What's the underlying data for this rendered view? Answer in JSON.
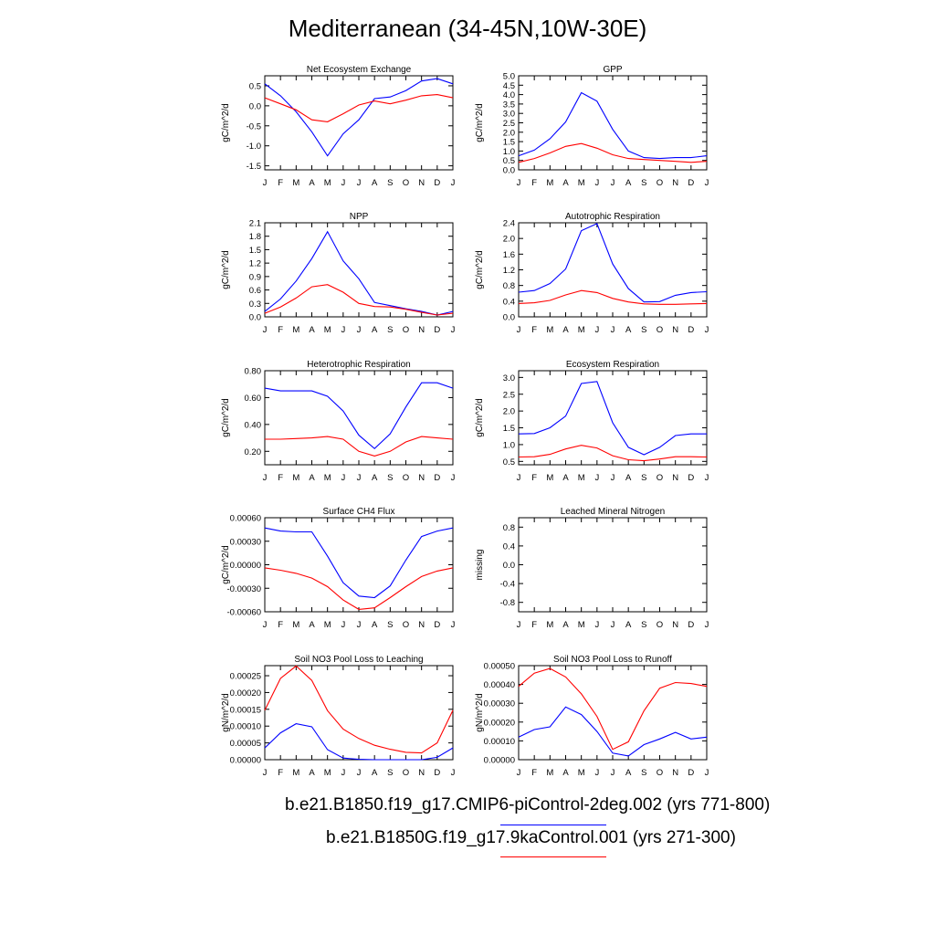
{
  "title": "Mediterranean (34-45N,10W-30E)",
  "months": [
    "J",
    "F",
    "M",
    "A",
    "M",
    "J",
    "J",
    "A",
    "S",
    "O",
    "N",
    "D",
    "J"
  ],
  "legend": [
    {
      "label": "b.e21.B1850.f19_g17.CMIP6-piControl-2deg.002 (yrs 771-800)",
      "color": "#0000ff"
    },
    {
      "label": "b.e21.B1850G.f19_g17.9kaControl.001 (yrs 271-300)",
      "color": "#ff0000"
    }
  ],
  "chart_data": [
    {
      "type": "line",
      "title": "Net Ecosystem Exchange",
      "ylabel": "gC/m^2/d",
      "ylim": [
        -1.6,
        0.75
      ],
      "yticks": [
        -1.5,
        -1.0,
        -0.5,
        0.0,
        0.5
      ],
      "yticklabels": [
        "-1.5",
        "-1.0",
        "-0.5",
        "0.0",
        "0.5"
      ],
      "series": [
        {
          "color": "#0000ff",
          "values": [
            0.55,
            0.25,
            -0.15,
            -0.65,
            -1.25,
            -0.7,
            -0.35,
            0.18,
            0.22,
            0.38,
            0.62,
            0.68,
            0.55
          ]
        },
        {
          "color": "#ff0000",
          "values": [
            0.2,
            0.05,
            -0.1,
            -0.35,
            -0.4,
            -0.2,
            0.02,
            0.12,
            0.05,
            0.14,
            0.25,
            0.28,
            0.2
          ]
        }
      ]
    },
    {
      "type": "line",
      "title": "GPP",
      "ylabel": "gC/m^2/d",
      "ylim": [
        0,
        5.0
      ],
      "yticks": [
        0,
        0.5,
        1.0,
        1.5,
        2.0,
        2.5,
        3.0,
        3.5,
        4.0,
        4.5,
        5.0
      ],
      "yticklabels": [
        "0.0",
        "0.5",
        "1.0",
        "1.5",
        "2.0",
        "2.5",
        "3.0",
        "3.5",
        "4.0",
        "4.5",
        "5.0"
      ],
      "series": [
        {
          "color": "#0000ff",
          "values": [
            0.75,
            1.05,
            1.65,
            2.55,
            4.1,
            3.65,
            2.15,
            1.0,
            0.65,
            0.6,
            0.65,
            0.65,
            0.75
          ]
        },
        {
          "color": "#ff0000",
          "values": [
            0.4,
            0.6,
            0.9,
            1.25,
            1.4,
            1.15,
            0.8,
            0.6,
            0.55,
            0.5,
            0.45,
            0.4,
            0.45
          ]
        }
      ]
    },
    {
      "type": "line",
      "title": "NPP",
      "ylabel": "gC/m^2/d",
      "ylim": [
        0,
        2.1
      ],
      "yticks": [
        0,
        0.3,
        0.6,
        0.9,
        1.2,
        1.5,
        1.8,
        2.1
      ],
      "yticklabels": [
        "0.0",
        "0.3",
        "0.6",
        "0.9",
        "1.2",
        "1.5",
        "1.8",
        "2.1"
      ],
      "series": [
        {
          "color": "#0000ff",
          "values": [
            0.12,
            0.4,
            0.8,
            1.3,
            1.9,
            1.25,
            0.85,
            0.32,
            0.25,
            0.18,
            0.12,
            0.04,
            0.12
          ]
        },
        {
          "color": "#ff0000",
          "values": [
            0.08,
            0.22,
            0.42,
            0.67,
            0.72,
            0.55,
            0.3,
            0.23,
            0.22,
            0.17,
            0.1,
            0.04,
            0.08
          ]
        }
      ]
    },
    {
      "type": "line",
      "title": "Autotrophic Respiration",
      "ylabel": "gC/m^2/d",
      "ylim": [
        0,
        2.4
      ],
      "yticks": [
        0,
        0.4,
        0.8,
        1.2,
        1.6,
        2.0,
        2.4
      ],
      "yticklabels": [
        "0.0",
        "0.4",
        "0.8",
        "1.2",
        "1.6",
        "2.0",
        "2.4"
      ],
      "series": [
        {
          "color": "#0000ff",
          "values": [
            0.63,
            0.67,
            0.85,
            1.22,
            2.2,
            2.38,
            1.35,
            0.72,
            0.38,
            0.39,
            0.55,
            0.62,
            0.64
          ]
        },
        {
          "color": "#ff0000",
          "values": [
            0.34,
            0.36,
            0.42,
            0.56,
            0.67,
            0.62,
            0.47,
            0.38,
            0.33,
            0.32,
            0.32,
            0.33,
            0.34
          ]
        }
      ]
    },
    {
      "type": "line",
      "title": "Heterotrophic Respiration",
      "ylabel": "gC/m^2/d",
      "ylim": [
        0.1,
        0.8
      ],
      "yticks": [
        0.2,
        0.4,
        0.6,
        0.8
      ],
      "yticklabels": [
        "0.20",
        "0.40",
        "0.60",
        "0.80"
      ],
      "series": [
        {
          "color": "#0000ff",
          "values": [
            0.67,
            0.65,
            0.65,
            0.65,
            0.61,
            0.5,
            0.32,
            0.22,
            0.33,
            0.53,
            0.71,
            0.71,
            0.67
          ]
        },
        {
          "color": "#ff0000",
          "values": [
            0.29,
            0.29,
            0.295,
            0.3,
            0.31,
            0.29,
            0.2,
            0.165,
            0.2,
            0.27,
            0.31,
            0.3,
            0.29
          ]
        }
      ]
    },
    {
      "type": "line",
      "title": "Ecosystem Respiration",
      "ylabel": "gC/m^2/d",
      "ylim": [
        0.4,
        3.2
      ],
      "yticks": [
        0.5,
        1.0,
        1.5,
        2.0,
        2.5,
        3.0
      ],
      "yticklabels": [
        "0.5",
        "1.0",
        "1.5",
        "2.0",
        "2.5",
        "3.0"
      ],
      "series": [
        {
          "color": "#0000ff",
          "values": [
            1.32,
            1.33,
            1.5,
            1.85,
            2.82,
            2.88,
            1.65,
            0.92,
            0.7,
            0.92,
            1.27,
            1.32,
            1.32
          ]
        },
        {
          "color": "#ff0000",
          "values": [
            0.63,
            0.64,
            0.71,
            0.87,
            0.98,
            0.9,
            0.67,
            0.55,
            0.52,
            0.57,
            0.64,
            0.64,
            0.63
          ]
        }
      ]
    },
    {
      "type": "line",
      "title": "Surface CH4 Flux",
      "ylabel": "gC/m^2/d",
      "ylim": [
        -0.0006,
        0.0006
      ],
      "yticks": [
        -0.0006,
        -0.0003,
        0.0,
        0.0003,
        0.0006
      ],
      "yticklabels": [
        "-0.00060",
        "-0.00030",
        "0.00000",
        "0.00030",
        "0.00060"
      ],
      "series": [
        {
          "color": "#0000ff",
          "values": [
            0.00047,
            0.00043,
            0.00042,
            0.00042,
            0.00011,
            -0.00023,
            -0.0004,
            -0.00042,
            -0.00027,
            6e-05,
            0.00036,
            0.00043,
            0.00047
          ]
        },
        {
          "color": "#ff0000",
          "values": [
            -4e-05,
            -7e-05,
            -0.00011,
            -0.00017,
            -0.00028,
            -0.00045,
            -0.00057,
            -0.00055,
            -0.00042,
            -0.00028,
            -0.00015,
            -8e-05,
            -4e-05
          ]
        }
      ]
    },
    {
      "type": "line",
      "title": "Leached Mineral Nitrogen",
      "ylabel": "missing",
      "ylim": [
        -1.0,
        1.0
      ],
      "yticks": [
        -0.8,
        -0.4,
        0.0,
        0.4,
        0.8
      ],
      "yticklabels": [
        "-0.8",
        "-0.4",
        "0.0",
        "0.4",
        "0.8"
      ],
      "series": []
    },
    {
      "type": "line",
      "title": "Soil NO3 Pool Loss to Leaching",
      "ylabel": "gN/m^2/d",
      "ylim": [
        0,
        0.00028
      ],
      "yticks": [
        0,
        5e-05,
        0.0001,
        0.00015,
        0.0002,
        0.00025
      ],
      "yticklabels": [
        "0.00000",
        "0.00005",
        "0.00010",
        "0.00015",
        "0.00020",
        "0.00025"
      ],
      "series": [
        {
          "color": "#0000ff",
          "values": [
            3.5e-05,
            8e-05,
            0.000107,
            9.8e-05,
            3e-05,
            5e-06,
            1e-06,
            0.0,
            0.0,
            0.0,
            0.0,
            7e-06,
            3.5e-05
          ]
        },
        {
          "color": "#ff0000",
          "values": [
            0.000147,
            0.000242,
            0.000279,
            0.000236,
            0.000146,
            9.1e-05,
            6.3e-05,
            4.3e-05,
            3.1e-05,
            2.2e-05,
            2e-05,
            5e-05,
            0.000147
          ]
        }
      ]
    },
    {
      "type": "line",
      "title": "Soil NO3 Pool Loss to Runoff",
      "ylabel": "gN/m^2/d",
      "ylim": [
        0,
        0.0005
      ],
      "yticks": [
        0,
        0.0001,
        0.0002,
        0.0003,
        0.0004,
        0.0005
      ],
      "yticklabels": [
        "0.00000",
        "0.00010",
        "0.00020",
        "0.00030",
        "0.00040",
        "0.00050"
      ],
      "series": [
        {
          "color": "#0000ff",
          "values": [
            0.00012,
            0.00016,
            0.000175,
            0.00028,
            0.00024,
            0.00015,
            3.5e-05,
            2e-05,
            8e-05,
            0.00011,
            0.000145,
            0.00011,
            0.00012
          ]
        },
        {
          "color": "#ff0000",
          "values": [
            0.00039,
            0.00046,
            0.000485,
            0.00044,
            0.00035,
            0.00023,
            5.5e-05,
            9.5e-05,
            0.00026,
            0.00038,
            0.00041,
            0.000405,
            0.00039
          ]
        }
      ]
    }
  ]
}
